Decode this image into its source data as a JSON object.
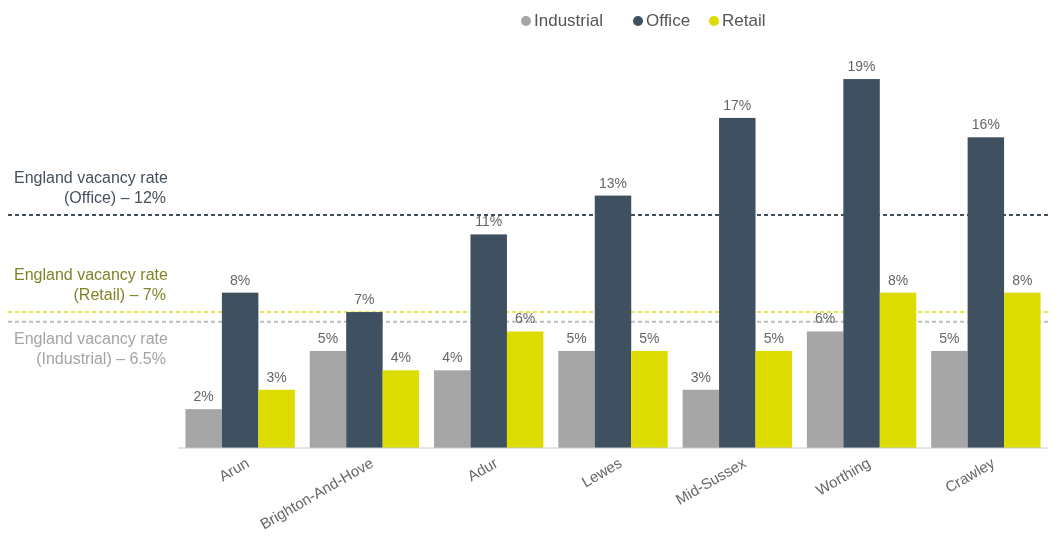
{
  "chart_data": {
    "type": "bar",
    "categories": [
      "Arun",
      "Brighton-And-Hove",
      "Adur",
      "Lewes",
      "Mid-Sussex",
      "Worthing",
      "Crawley"
    ],
    "series": [
      {
        "name": "Industrial",
        "color": "#a6a6a6",
        "values": [
          2,
          5,
          4,
          5,
          3,
          6,
          5
        ],
        "value_labels": [
          "2%",
          "5%",
          "4%",
          "5%",
          "3%",
          "6%",
          "5%"
        ]
      },
      {
        "name": "Office",
        "color": "#3f5060",
        "values": [
          8,
          7,
          11,
          13,
          17,
          19,
          16
        ],
        "value_labels": [
          "8%",
          "7%",
          "11%",
          "13%",
          "17%",
          "19%",
          "16%"
        ]
      },
      {
        "name": "Retail",
        "color": "#dcdc00",
        "values": [
          3,
          4,
          6,
          5,
          5,
          8,
          8
        ],
        "value_labels": [
          "3%",
          "4%",
          "6%",
          "5%",
          "5%",
          "8%",
          "8%"
        ]
      }
    ],
    "legend": "top",
    "ref_lines": [
      {
        "axis": "y",
        "value": 12,
        "label": "England vacancy rate\n(Office) – 12%",
        "color": "#44505c",
        "line_style": "dashed"
      },
      {
        "axis": "y",
        "value": 7,
        "label": "England vacancy rate\n(Retail) – 7%",
        "color": "#e6e64a",
        "line_style": "dashed"
      },
      {
        "axis": "y",
        "value": 6.5,
        "label": "England vacancy rate\n(Industrial) – 6.5%",
        "color": "#bdbdbd",
        "line_style": "dashed"
      }
    ]
  }
}
